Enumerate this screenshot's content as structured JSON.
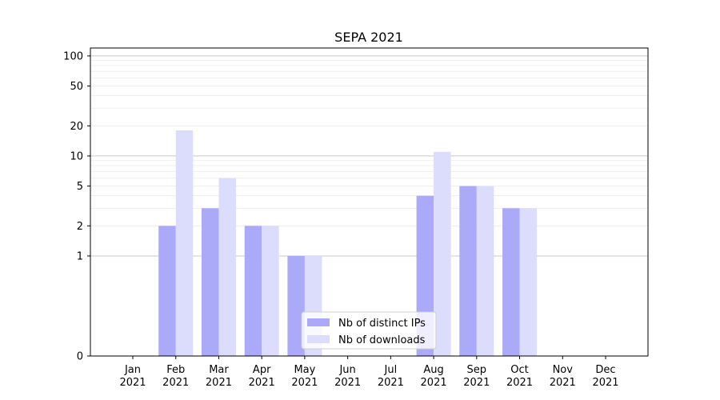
{
  "chart_data": {
    "type": "bar",
    "title": "SEPA 2021",
    "categories": [
      [
        "Jan",
        "2021"
      ],
      [
        "Feb",
        "2021"
      ],
      [
        "Mar",
        "2021"
      ],
      [
        "Apr",
        "2021"
      ],
      [
        "May",
        "2021"
      ],
      [
        "Jun",
        "2021"
      ],
      [
        "Jul",
        "2021"
      ],
      [
        "Aug",
        "2021"
      ],
      [
        "Sep",
        "2021"
      ],
      [
        "Oct",
        "2021"
      ],
      [
        "Nov",
        "2021"
      ],
      [
        "Dec",
        "2021"
      ]
    ],
    "series": [
      {
        "name": "Nb of distinct IPs",
        "color": "#aaaaf8",
        "values": [
          0,
          2,
          3,
          2,
          1,
          0,
          0,
          4,
          5,
          3,
          0,
          0
        ]
      },
      {
        "name": "Nb of downloads",
        "color": "#dcdcfc",
        "values": [
          0,
          18,
          6,
          2,
          1,
          0,
          0,
          11,
          5,
          3,
          0,
          0
        ]
      }
    ],
    "y_scale": "symlog",
    "y_ticks": [
      "0",
      "1",
      "2",
      "5",
      "10",
      "20",
      "50",
      "100"
    ],
    "ylim": [
      0,
      120
    ],
    "xlabel": "",
    "ylabel": "",
    "grid": true,
    "legend_position": "lower-center"
  }
}
